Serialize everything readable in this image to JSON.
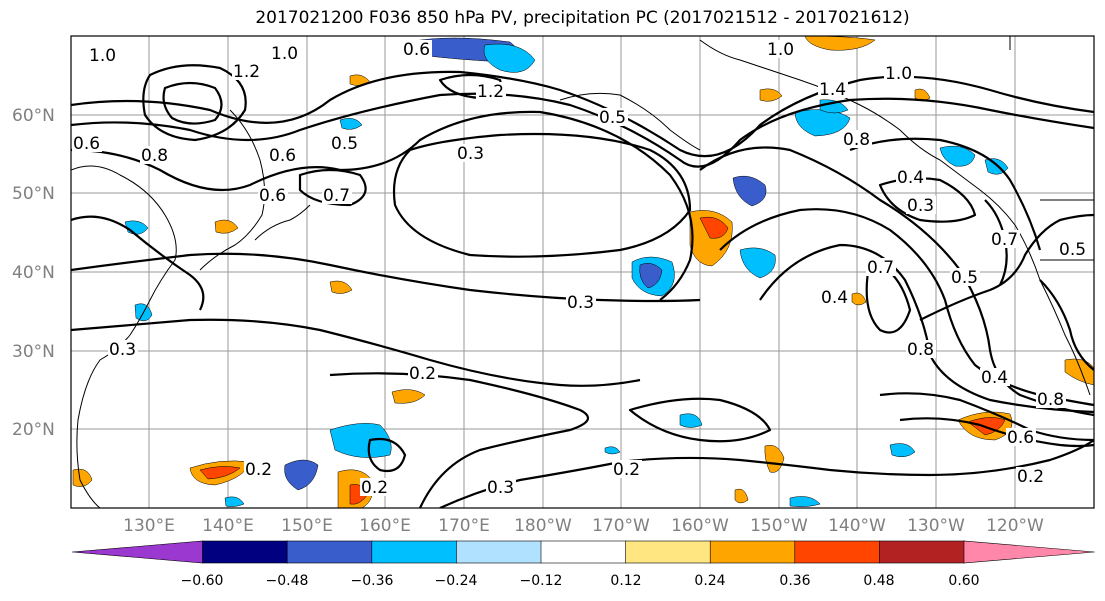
{
  "title": "2017021200 F036 850 hPa PV, precipitation PC (2017021512 - 2017021612)",
  "lon_ticks": [
    "130°E",
    "140°E",
    "150°E",
    "160°E",
    "170°E",
    "180°W",
    "170°W",
    "160°W",
    "150°W",
    "140°W",
    "130°W",
    "120°W"
  ],
  "lat_ticks": [
    "60°N",
    "50°N",
    "40°N",
    "30°N",
    "20°N"
  ],
  "map_extent": {
    "lon_min": 120,
    "lon_max": 250,
    "lat_min": 10,
    "lat_max": 70
  },
  "pv_contour_labels": [
    "1.0",
    "1.0",
    "1.0",
    "0.6",
    "1.2",
    "1.2",
    "1.0",
    "1.4",
    "0.6",
    "0.8",
    "0.6",
    "0.5",
    "0.5",
    "0.6",
    "0.7",
    "0.3",
    "0.3",
    "0.8",
    "0.4",
    "0.7",
    "0.7",
    "0.5",
    "0.4",
    "0.5",
    "0.8",
    "0.4",
    "0.8",
    "0.6",
    "0.3",
    "0.3",
    "0.2",
    "0.2",
    "0.2",
    "0.2",
    "0.3",
    "0.2",
    "0.5",
    "0.4",
    "0.4",
    "0.3",
    "0.5",
    "0.5",
    "0.4",
    "0.6",
    "0.7",
    "0.3",
    "0.3",
    "0.6",
    "0.5",
    "0.7"
  ],
  "colorbar": {
    "ticks": [
      "−0.60",
      "−0.48",
      "−0.36",
      "−0.24",
      "−0.12",
      "0.12",
      "0.24",
      "0.36",
      "0.48",
      "0.60"
    ],
    "bins": [
      {
        "from": "min",
        "to": -0.6,
        "color": "#9a38d0"
      },
      {
        "from": -0.6,
        "to": -0.48,
        "color": "#000080"
      },
      {
        "from": -0.48,
        "to": -0.36,
        "color": "#3a5dcc"
      },
      {
        "from": -0.36,
        "to": -0.24,
        "color": "#00bfff"
      },
      {
        "from": -0.24,
        "to": -0.12,
        "color": "#b0e2ff"
      },
      {
        "from": -0.12,
        "to": 0.12,
        "color": "#ffffff"
      },
      {
        "from": 0.12,
        "to": 0.24,
        "color": "#ffe680"
      },
      {
        "from": 0.24,
        "to": 0.36,
        "color": "#ffa500"
      },
      {
        "from": 0.36,
        "to": 0.48,
        "color": "#ff4500"
      },
      {
        "from": 0.48,
        "to": 0.6,
        "color": "#b22222"
      },
      {
        "from": 0.6,
        "to": "max",
        "color": "#ff88aa"
      }
    ]
  }
}
